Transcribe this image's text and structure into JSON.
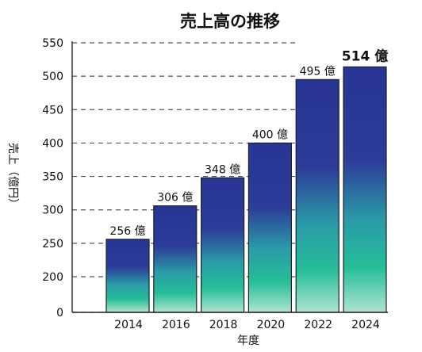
{
  "chart_data": {
    "type": "bar",
    "title": "売上高の推移",
    "xlabel": "年度",
    "ylabel": "売上（億円）",
    "categories": [
      "2014",
      "2016",
      "2018",
      "2020",
      "2022",
      "2024"
    ],
    "values": [
      256,
      306,
      348,
      400,
      495,
      514
    ],
    "data_labels": [
      "256 億",
      "306 億",
      "348 億",
      "400 億",
      "495 億",
      "514 億"
    ],
    "y_ticks": [
      0,
      200,
      250,
      300,
      350,
      400,
      450,
      500,
      550
    ],
    "ylim": [
      0,
      550
    ],
    "grid": "dashed-horizontal",
    "bar_gradient": [
      "#283593",
      "#2c3c98",
      "#2a9aa8",
      "#26be98",
      "#b0e4d2"
    ],
    "bar_border": "#222222"
  }
}
